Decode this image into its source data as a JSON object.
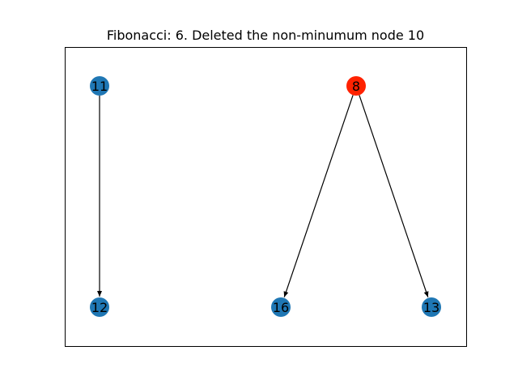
{
  "title": "Fibonacci: 6. Deleted the non-minumum node 10",
  "colors": {
    "default_node": "#1f77b4",
    "highlight_node": "#ff2200",
    "edge": "#000000"
  },
  "nodes": [
    {
      "id": "11",
      "label": "11",
      "highlight": false
    },
    {
      "id": "12",
      "label": "12",
      "highlight": false
    },
    {
      "id": "8",
      "label": "8",
      "highlight": true
    },
    {
      "id": "16",
      "label": "16",
      "highlight": false
    },
    {
      "id": "13",
      "label": "13",
      "highlight": false
    }
  ],
  "edges": [
    {
      "from": "11",
      "to": "12"
    },
    {
      "from": "8",
      "to": "16"
    },
    {
      "from": "8",
      "to": "13"
    }
  ]
}
